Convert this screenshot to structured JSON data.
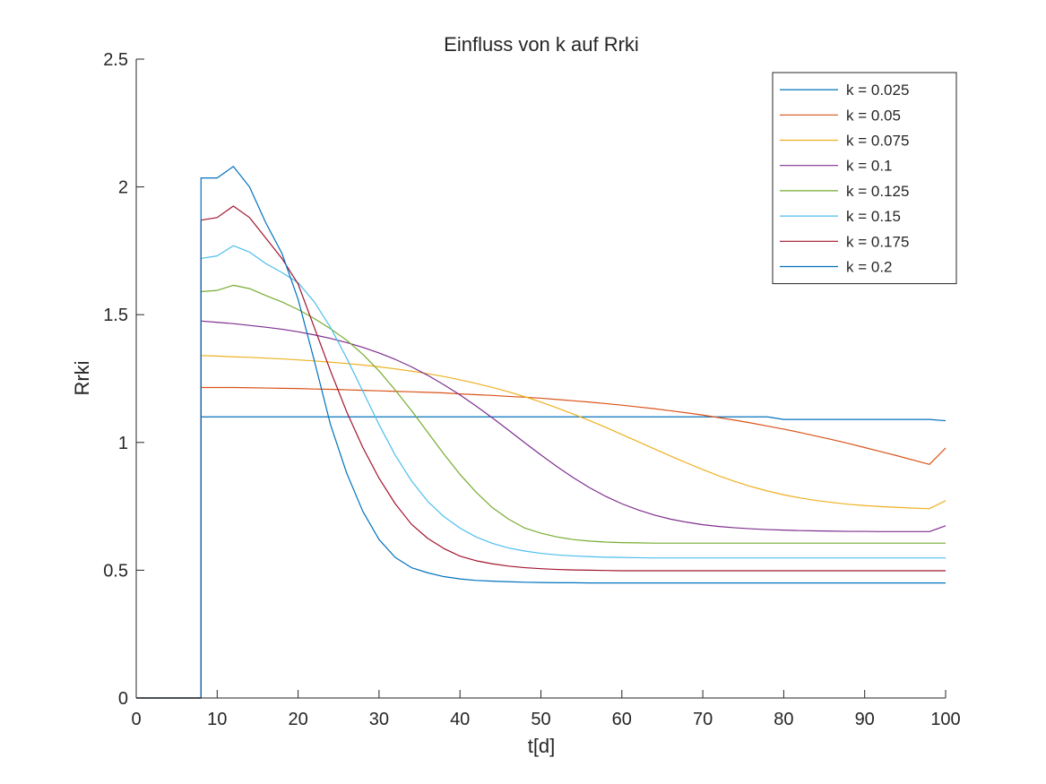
{
  "chart_data": {
    "type": "line",
    "title": "Einfluss von k auf Rrki",
    "xlabel": "t[d]",
    "ylabel": "Rrki",
    "xlim": [
      0,
      100
    ],
    "ylim": [
      0,
      2.5
    ],
    "xticks": [
      0,
      10,
      20,
      30,
      40,
      50,
      60,
      70,
      80,
      90,
      100
    ],
    "yticks": [
      0,
      0.5,
      1,
      1.5,
      2,
      2.5
    ],
    "xtick_labels": [
      "0",
      "10",
      "20",
      "30",
      "40",
      "50",
      "60",
      "70",
      "80",
      "90",
      "100"
    ],
    "ytick_labels": [
      "0",
      "0.5",
      "1",
      "1.5",
      "2",
      "2.5"
    ],
    "grid": false,
    "legend_position": "top-right",
    "x": [
      0,
      2,
      4,
      6,
      8,
      10,
      12,
      14,
      16,
      18,
      20,
      22,
      24,
      26,
      28,
      30,
      32,
      34,
      36,
      38,
      40,
      42,
      44,
      46,
      48,
      50,
      52,
      54,
      56,
      58,
      60,
      62,
      64,
      66,
      68,
      70,
      72,
      74,
      76,
      78,
      80,
      82,
      84,
      86,
      88,
      90,
      92,
      94,
      96,
      98,
      100
    ],
    "series": [
      {
        "name": "k = 0.025",
        "color": "#0072BD",
        "values": [
          0,
          0,
          0,
          0,
          1.1,
          1.1,
          1.1,
          1.1,
          1.1,
          1.1,
          1.1,
          1.1,
          1.1,
          1.1,
          1.1,
          1.1,
          1.1,
          1.1,
          1.1,
          1.1,
          1.1,
          1.1,
          1.1,
          1.1,
          1.1,
          1.1,
          1.1,
          1.1,
          1.1,
          1.1,
          1.1,
          1.1,
          1.1,
          1.1,
          1.1,
          1.1,
          1.1,
          1.1,
          1.1,
          1.1,
          1.09,
          1.09,
          1.09,
          1.09,
          1.09,
          1.09,
          1.09,
          1.09,
          1.09,
          1.09,
          1.085
        ]
      },
      {
        "name": "k = 0.05",
        "color": "#D95319",
        "values": [
          0,
          0,
          0,
          0,
          1.215,
          1.215,
          1.215,
          1.214,
          1.213,
          1.212,
          1.211,
          1.209,
          1.208,
          1.206,
          1.204,
          1.202,
          1.2,
          1.198,
          1.196,
          1.194,
          1.19,
          1.187,
          1.184,
          1.18,
          1.177,
          1.173,
          1.168,
          1.163,
          1.158,
          1.152,
          1.146,
          1.139,
          1.132,
          1.124,
          1.116,
          1.107,
          1.097,
          1.087,
          1.076,
          1.064,
          1.052,
          1.039,
          1.025,
          1.011,
          0.996,
          0.98,
          0.964,
          0.948,
          0.931,
          0.914,
          0.978
        ]
      },
      {
        "name": "k = 0.075",
        "color": "#EDB120",
        "values": [
          0,
          0,
          0,
          0,
          1.34,
          1.338,
          1.335,
          1.333,
          1.33,
          1.327,
          1.323,
          1.319,
          1.314,
          1.309,
          1.303,
          1.296,
          1.288,
          1.279,
          1.269,
          1.258,
          1.245,
          1.231,
          1.215,
          1.198,
          1.179,
          1.158,
          1.135,
          1.111,
          1.086,
          1.059,
          1.031,
          1.003,
          0.975,
          0.947,
          0.92,
          0.894,
          0.869,
          0.847,
          0.827,
          0.81,
          0.795,
          0.783,
          0.773,
          0.765,
          0.758,
          0.753,
          0.749,
          0.746,
          0.743,
          0.741,
          0.772
        ]
      },
      {
        "name": "k = 0.1",
        "color": "#7E2F8E",
        "values": [
          0,
          0,
          0,
          0,
          1.475,
          1.47,
          1.465,
          1.458,
          1.451,
          1.443,
          1.433,
          1.421,
          1.407,
          1.391,
          1.372,
          1.35,
          1.325,
          1.296,
          1.263,
          1.226,
          1.186,
          1.142,
          1.096,
          1.048,
          0.999,
          0.951,
          0.905,
          0.862,
          0.823,
          0.789,
          0.76,
          0.736,
          0.716,
          0.7,
          0.688,
          0.678,
          0.671,
          0.666,
          0.662,
          0.659,
          0.657,
          0.655,
          0.654,
          0.653,
          0.652,
          0.652,
          0.651,
          0.651,
          0.651,
          0.651,
          0.674
        ]
      },
      {
        "name": "k = 0.125",
        "color": "#77AC30",
        "values": [
          0,
          0,
          0,
          0,
          1.59,
          1.595,
          1.615,
          1.602,
          1.575,
          1.55,
          1.52,
          1.485,
          1.445,
          1.4,
          1.345,
          1.28,
          1.205,
          1.125,
          1.04,
          0.955,
          0.875,
          0.805,
          0.745,
          0.7,
          0.665,
          0.645,
          0.63,
          0.62,
          0.614,
          0.61,
          0.608,
          0.607,
          0.606,
          0.606,
          0.606,
          0.606,
          0.606,
          0.606,
          0.606,
          0.606,
          0.606,
          0.606,
          0.606,
          0.606,
          0.606,
          0.606,
          0.606,
          0.606,
          0.606,
          0.606,
          0.606
        ]
      },
      {
        "name": "k = 0.15",
        "color": "#4DBEEE",
        "values": [
          0,
          0,
          0,
          0,
          1.72,
          1.73,
          1.77,
          1.745,
          1.7,
          1.665,
          1.625,
          1.55,
          1.45,
          1.33,
          1.2,
          1.07,
          0.95,
          0.85,
          0.77,
          0.71,
          0.665,
          0.63,
          0.605,
          0.587,
          0.575,
          0.566,
          0.56,
          0.556,
          0.553,
          0.551,
          0.55,
          0.549,
          0.548,
          0.548,
          0.548,
          0.548,
          0.548,
          0.548,
          0.548,
          0.548,
          0.548,
          0.548,
          0.548,
          0.548,
          0.548,
          0.548,
          0.548,
          0.548,
          0.548,
          0.548,
          0.548
        ]
      },
      {
        "name": "k = 0.175",
        "color": "#A2142F",
        "values": [
          0,
          0,
          0,
          0,
          1.87,
          1.88,
          1.925,
          1.88,
          1.8,
          1.72,
          1.62,
          1.45,
          1.28,
          1.12,
          0.98,
          0.86,
          0.76,
          0.68,
          0.625,
          0.585,
          0.555,
          0.537,
          0.525,
          0.516,
          0.51,
          0.506,
          0.503,
          0.501,
          0.5,
          0.499,
          0.498,
          0.498,
          0.498,
          0.498,
          0.498,
          0.498,
          0.498,
          0.498,
          0.498,
          0.498,
          0.498,
          0.498,
          0.498,
          0.498,
          0.498,
          0.498,
          0.498,
          0.498,
          0.498,
          0.498,
          0.498
        ]
      },
      {
        "name": "k = 0.2",
        "color": "#0072BD",
        "values": [
          0,
          0,
          0,
          0,
          2.035,
          2.035,
          2.08,
          2.0,
          1.86,
          1.74,
          1.56,
          1.32,
          1.07,
          0.88,
          0.73,
          0.62,
          0.55,
          0.51,
          0.49,
          0.475,
          0.466,
          0.46,
          0.457,
          0.455,
          0.453,
          0.452,
          0.451,
          0.451,
          0.45,
          0.45,
          0.45,
          0.45,
          0.45,
          0.45,
          0.45,
          0.45,
          0.45,
          0.45,
          0.45,
          0.45,
          0.45,
          0.45,
          0.45,
          0.45,
          0.45,
          0.45,
          0.45,
          0.45,
          0.45,
          0.45,
          0.45
        ]
      }
    ]
  }
}
